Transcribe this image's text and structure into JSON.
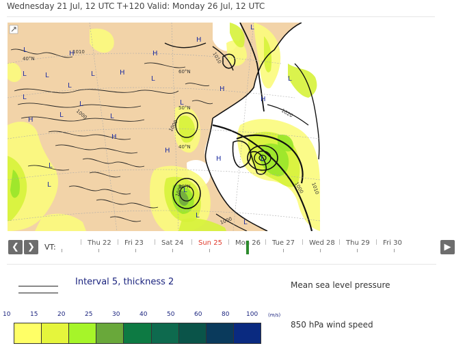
{
  "header": {
    "text": "Wednesday 21 Jul, 12 UTC T+120 Valid: Monday 26 Jul, 12 UTC"
  },
  "map": {
    "pressure_labels": [
      "L",
      "L",
      "L",
      "L",
      "L",
      "L",
      "L",
      "L",
      "L",
      "L",
      "L",
      "L",
      "L",
      "L",
      "L",
      "L",
      "L",
      "L",
      "L",
      "H",
      "H",
      "H",
      "H",
      "H",
      "H",
      "H",
      "H",
      "H",
      "H"
    ],
    "isobar_labels": [
      "1010",
      "1010",
      "1000",
      "1000",
      "1000",
      "1020",
      "1010",
      "1000",
      "1000"
    ],
    "latitude_labels": [
      "40°N",
      "60°N",
      "50°N",
      "40°N",
      "30°N"
    ],
    "colors": {
      "land": "#f2d3a8",
      "sea": "#ffffff",
      "wind_light": "#fbfb7c",
      "wind_mid": "#d6f23a",
      "wind_strong": "#98e62a",
      "wind_darker": "#70a840"
    }
  },
  "timeline": {
    "prev_icon": "chevron-left-icon",
    "next_icon": "chevron-right-icon",
    "play_icon": "play-icon",
    "vt_label": "VT:",
    "days": [
      {
        "label": "Thu 22",
        "sunday": false
      },
      {
        "label": "Fri 23",
        "sunday": false
      },
      {
        "label": "Sat 24",
        "sunday": false
      },
      {
        "label": "Sun 25",
        "sunday": true
      },
      {
        "label": "Mon 26",
        "sunday": false
      },
      {
        "label": "Tue 27",
        "sunday": false
      },
      {
        "label": "Wed 28",
        "sunday": false
      },
      {
        "label": "Thu 29",
        "sunday": false
      },
      {
        "label": "Fri 30",
        "sunday": false
      }
    ],
    "selected_day": "Mon 26"
  },
  "legend": {
    "interval_text": "Interval 5, thickness 2",
    "mslp_label": "Mean sea level pressure",
    "wind_label": "850 hPa wind speed",
    "wind_unit": "(m/s)",
    "scale_values": [
      "10",
      "15",
      "20",
      "25",
      "30",
      "40",
      "50",
      "60",
      "80",
      "100"
    ],
    "scale_colors": [
      "#ffff66",
      "#e5f53c",
      "#a6f529",
      "#69a83a",
      "#0d7a43",
      "#0e6a4e",
      "#0a5449",
      "#0a3a5c",
      "#0a2a80",
      "#0a2ab0"
    ]
  }
}
